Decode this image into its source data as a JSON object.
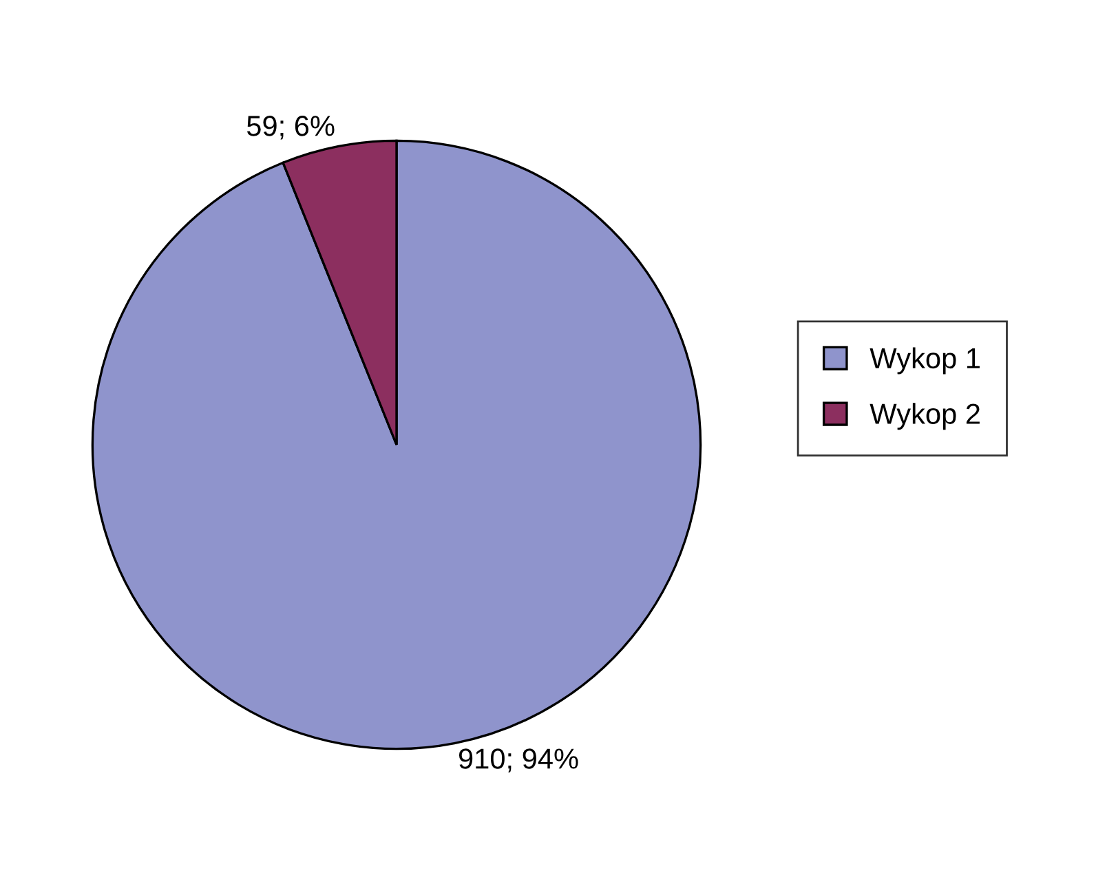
{
  "chart_data": {
    "type": "pie",
    "categories": [
      "Wykop 1",
      "Wykop 2"
    ],
    "values": [
      910,
      59
    ],
    "colors": [
      "#8f94cc",
      "#8c2f5f"
    ],
    "value_labels": [
      "910; 94%",
      "59; 6%"
    ],
    "legend": "right"
  }
}
